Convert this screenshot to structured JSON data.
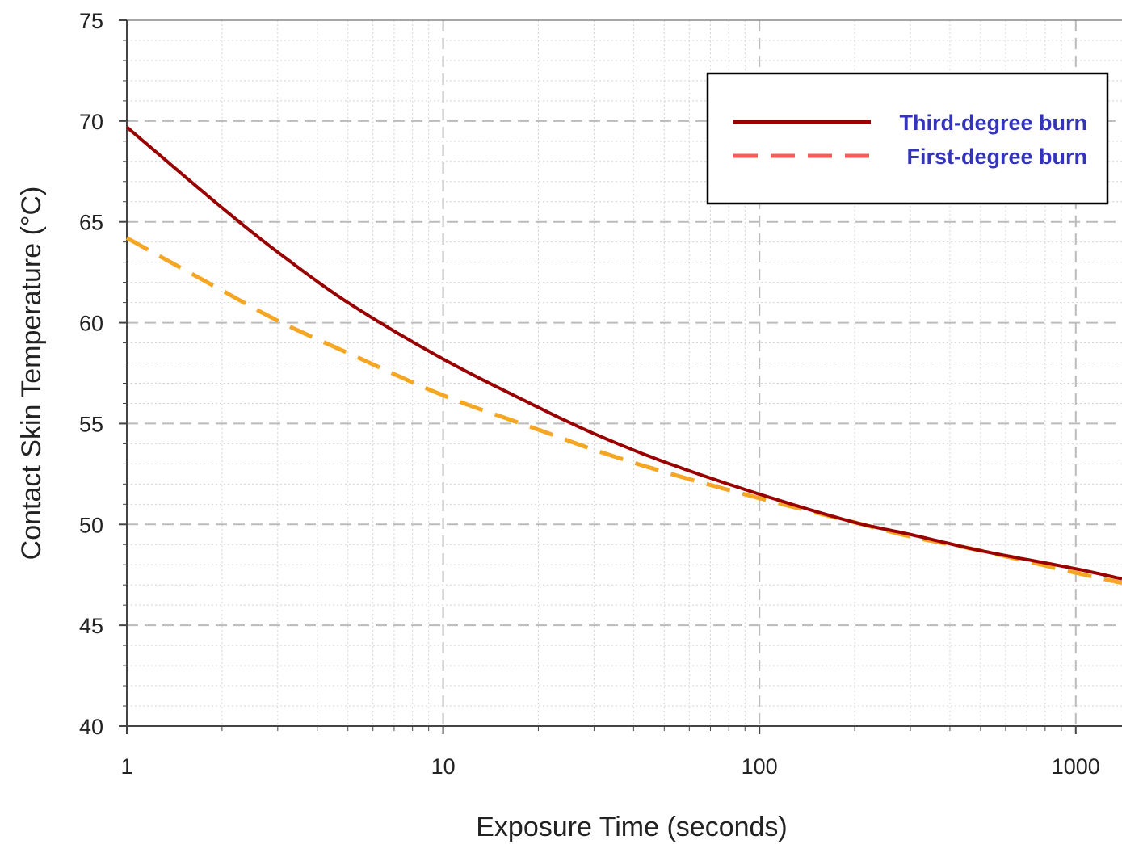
{
  "chart_data": {
    "type": "line",
    "xlabel": "Exposure Time (seconds)",
    "ylabel": "Contact Skin Temperature (°C)",
    "x_scale": "log",
    "xlim": [
      1,
      1400
    ],
    "ylim": [
      40,
      75
    ],
    "x_ticks": [
      1,
      10,
      100,
      1000
    ],
    "x_tick_labels": [
      "1",
      "10",
      "100",
      "1000"
    ],
    "y_ticks": [
      40,
      45,
      50,
      55,
      60,
      65,
      70,
      75
    ],
    "y_tick_labels": [
      "40",
      "45",
      "50",
      "55",
      "60",
      "65",
      "70",
      "75"
    ],
    "grid": true,
    "legend_position": "top-right",
    "series": [
      {
        "name": "Third-degree burn",
        "style": "solid",
        "color": "#990000",
        "x": [
          1,
          2,
          3,
          5,
          10,
          20,
          30,
          50,
          100,
          200,
          300,
          500,
          1000,
          1400
        ],
        "y": [
          69.7,
          65.7,
          63.5,
          61.0,
          58.2,
          55.8,
          54.5,
          53.1,
          51.5,
          50.1,
          49.5,
          48.7,
          47.8,
          47.3
        ]
      },
      {
        "name": "First-degree burn",
        "style": "dashed",
        "color": "#f5a623",
        "x": [
          1,
          2,
          3,
          5,
          10,
          20,
          30,
          50,
          100,
          200,
          300,
          500,
          1000,
          1400
        ],
        "y": [
          64.2,
          61.6,
          60.1,
          58.5,
          56.4,
          54.7,
          53.7,
          52.6,
          51.3,
          50.1,
          49.4,
          48.7,
          47.6,
          47.1
        ]
      }
    ],
    "legend": {
      "entries": [
        {
          "label": "Third-degree burn",
          "line_color": "#990000",
          "style": "solid"
        },
        {
          "label": "First-degree burn",
          "line_color": "#ff5a55",
          "style": "dashed"
        }
      ],
      "text_color": "#3333bb"
    },
    "colors": {
      "grid_major": "#bbbbbb",
      "grid_minor": "#d4d4d4",
      "axis": "#444444"
    }
  }
}
